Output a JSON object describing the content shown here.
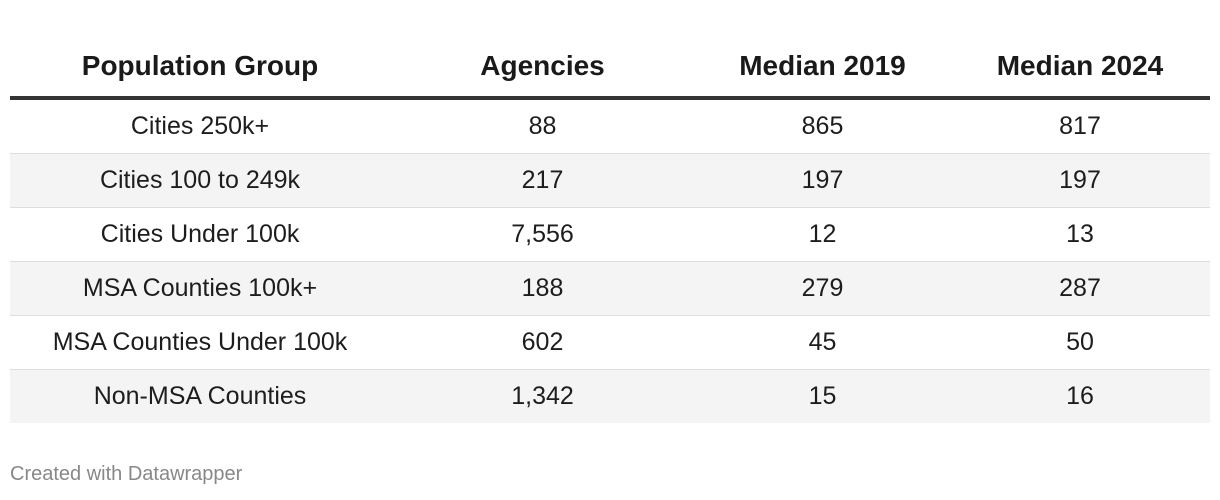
{
  "chart_data": {
    "type": "table",
    "columns": [
      "Population Group",
      "Agencies",
      "Median 2019",
      "Median 2024"
    ],
    "rows": [
      [
        "Cities 250k+",
        "88",
        "865",
        "817"
      ],
      [
        "Cities 100 to 249k",
        "217",
        "197",
        "197"
      ],
      [
        "Cities Under 100k",
        "7,556",
        "12",
        "13"
      ],
      [
        "MSA Counties 100k+",
        "188",
        "279",
        "287"
      ],
      [
        "MSA Counties Under 100k",
        "602",
        "45",
        "50"
      ],
      [
        "Non-MSA Counties",
        "1,342",
        "15",
        "16"
      ]
    ],
    "banded_rows": true
  },
  "footer": {
    "credit": "Created with Datawrapper"
  }
}
